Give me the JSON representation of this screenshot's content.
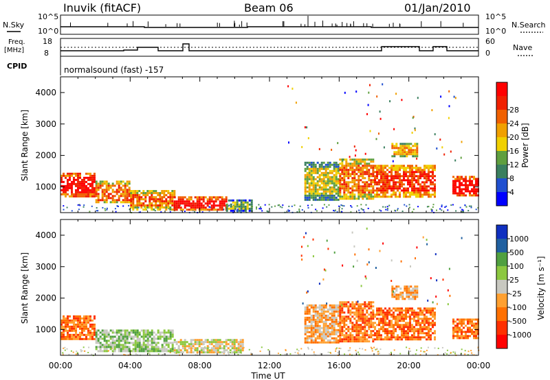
{
  "header": {
    "station": "Inuvik (fitACF)",
    "beam": "Beam 06",
    "date": "01/Jan/2010"
  },
  "strips": {
    "nsky_label": "N.Sky",
    "nsky_ticks": [
      "10^5",
      "10^0"
    ],
    "nsearch_label": "N.Search",
    "nsearch_ticks": [
      "10^5",
      "10^0"
    ],
    "freq_label_1": "Freq.",
    "freq_label_2": "[MHz]",
    "freq_ticks": [
      "18",
      "8"
    ],
    "nave_label": "Nave",
    "nave_ticks": [
      "60",
      "0"
    ],
    "cpid_label": "CPID",
    "cpid_text": "normalsound (fast) -157"
  },
  "colors": {
    "power_scale": [
      "#0000ff",
      "#2050d0",
      "#3a7f5f",
      "#5f9f3f",
      "#f0d000",
      "#f0a000",
      "#f06000",
      "#f02000",
      "#ff0000"
    ],
    "velocity_scale": [
      "#ff0000",
      "#ff3000",
      "#ff7000",
      "#ffa030",
      "#c8c8c0",
      "#8cc840",
      "#50a040",
      "#2060a0",
      "#1030c0"
    ]
  },
  "chart_data": [
    {
      "type": "heatmap",
      "name": "power",
      "xlabel": "Time UT",
      "ylabel": "Slant Range [km]",
      "x_ticks": [
        "00:00",
        "04:00",
        "08:00",
        "12:00",
        "16:00",
        "20:00",
        "00:00"
      ],
      "xlim": [
        0,
        24
      ],
      "ylim": [
        180,
        4500
      ],
      "y_ticks": [
        1000,
        2000,
        3000,
        4000
      ],
      "colorbar_label": "Power [dB]",
      "colorbar_ticks": [
        4,
        8,
        12,
        16,
        20,
        24,
        28
      ],
      "regions": [
        {
          "t0": 0.0,
          "t1": 2.0,
          "r0": 700,
          "r1": 1450,
          "level": 8
        },
        {
          "t0": 2.0,
          "t1": 4.0,
          "r0": 500,
          "r1": 1200,
          "level": 6
        },
        {
          "t0": 4.0,
          "t1": 6.5,
          "r0": 300,
          "r1": 900,
          "level": 6
        },
        {
          "t0": 6.5,
          "t1": 9.5,
          "r0": 250,
          "r1": 700,
          "level": 8
        },
        {
          "t0": 9.5,
          "t1": 11.0,
          "r0": 250,
          "r1": 600,
          "level": 3
        },
        {
          "t0": 14.0,
          "t1": 16.0,
          "r0": 600,
          "r1": 1800,
          "level": 4
        },
        {
          "t0": 16.0,
          "t1": 18.0,
          "r0": 600,
          "r1": 1900,
          "level": 6
        },
        {
          "t0": 18.0,
          "t1": 21.5,
          "r0": 700,
          "r1": 1700,
          "level": 7
        },
        {
          "t0": 19.0,
          "t1": 20.5,
          "r0": 2000,
          "r1": 2400,
          "level": 5
        },
        {
          "t0": 22.5,
          "t1": 24.0,
          "r0": 700,
          "r1": 1350,
          "level": 8
        }
      ]
    },
    {
      "type": "heatmap",
      "name": "velocity",
      "xlabel": "Time UT",
      "ylabel": "Slant Range [km]",
      "x_ticks": [
        "00:00",
        "04:00",
        "08:00",
        "12:00",
        "16:00",
        "20:00",
        "00:00"
      ],
      "xlim": [
        0,
        24
      ],
      "ylim": [
        180,
        4500
      ],
      "y_ticks": [
        1000,
        2000,
        3000,
        4000
      ],
      "colorbar_label": "Velocity [m s⁻¹]",
      "colorbar_ticks": [
        "1000",
        "500",
        "100",
        "25",
        "-25",
        "-100",
        "-500",
        "-1000"
      ],
      "regions": [
        {
          "t0": 0.0,
          "t1": 2.0,
          "r0": 700,
          "r1": 1450,
          "level": 2
        },
        {
          "t0": 2.0,
          "t1": 6.5,
          "r0": 300,
          "r1": 1000,
          "level": 5
        },
        {
          "t0": 6.5,
          "t1": 10.5,
          "r0": 250,
          "r1": 700,
          "level": 4
        },
        {
          "t0": 14.0,
          "t1": 16.0,
          "r0": 600,
          "r1": 1800,
          "level": 3
        },
        {
          "t0": 16.0,
          "t1": 18.0,
          "r0": 600,
          "r1": 1900,
          "level": 2
        },
        {
          "t0": 18.0,
          "t1": 21.5,
          "r0": 700,
          "r1": 1700,
          "level": 2
        },
        {
          "t0": 19.0,
          "t1": 20.5,
          "r0": 2000,
          "r1": 2400,
          "level": 3
        },
        {
          "t0": 22.5,
          "t1": 24.0,
          "r0": 700,
          "r1": 1350,
          "level": 2
        }
      ]
    }
  ]
}
